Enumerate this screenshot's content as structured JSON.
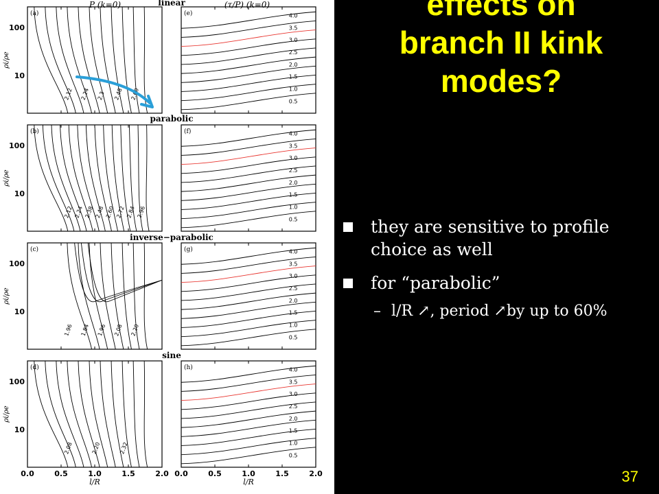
{
  "slide": {
    "title_lines": [
      "effects on",
      "branch II kink",
      "modes?"
    ],
    "bullets": [
      {
        "text": "they are sensitive to profile choice as well"
      },
      {
        "text": "for “parabolic”"
      }
    ],
    "sub_bullets": [
      {
        "marker": "–",
        "text": "l/R ↗, period ↗by up to 60%"
      }
    ],
    "slide_number": "37"
  },
  "figure": {
    "column_titles": [
      "P (k=0)",
      "(τ/P) (k=0)"
    ],
    "profile_labels": [
      "linear",
      "parabolic",
      "inverse−parabolic",
      "sine"
    ],
    "left_panel_labels": [
      "(a)",
      "(b)",
      "(c)",
      "(d)"
    ],
    "right_panel_labels": [
      "(e)",
      "(f)",
      "(g)",
      "(h)"
    ],
    "y_axis_label": "ρi/ρe",
    "y_tick_labels": [
      "100",
      "10"
    ],
    "x_axis_label": "l/R",
    "x_tick_labels": [
      "0.0",
      "0.5",
      "1.0",
      "1.5",
      "2.0"
    ],
    "left_contours": [
      [
        "2.12",
        "2.24",
        "2.3",
        "2.48",
        "2.60"
      ],
      [
        "2.12",
        "2.24",
        "2.38",
        "2.48",
        "2.60",
        "2.72",
        "2.84",
        "2.96"
      ],
      [
        "1.96",
        "1.84",
        "1.96",
        "2.08",
        "2.20"
      ],
      [
        "2.08",
        "2.20",
        "2.32"
      ]
    ],
    "right_contours": [
      [
        "4.0",
        "3.5",
        "3.0",
        "2.5",
        "2.0",
        "1.5",
        "1.0",
        "0.5"
      ],
      [
        "4.0",
        "3.5",
        "3.0",
        "2.5",
        "2.0",
        "1.5",
        "1.0",
        "0.5"
      ],
      [
        "4.0",
        "3.5",
        "3.0",
        "2.5",
        "2.0",
        "1.5",
        "1.0",
        "0.5"
      ],
      [
        "4.0",
        "3.5",
        "3.0",
        "2.5",
        "2.0",
        "1.5",
        "1.0",
        "0.5"
      ]
    ],
    "highlight_color": "#e8342e",
    "arrow_color": "#2a9fd8"
  }
}
